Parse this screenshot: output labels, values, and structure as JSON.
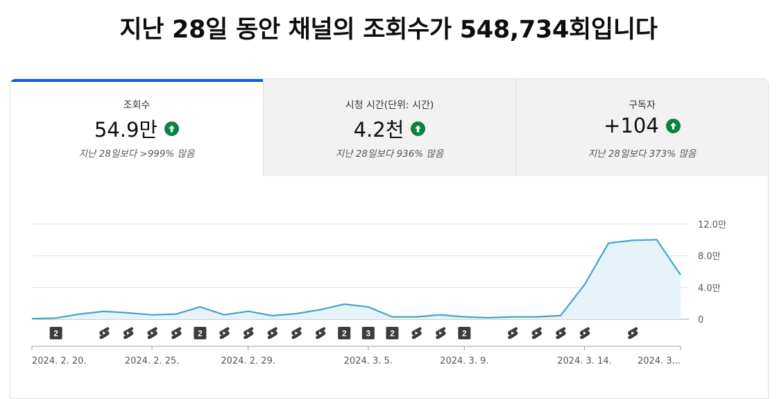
{
  "headline": "지난 28일 동안 채널의 조회수가 548,734회입니다",
  "tabs": [
    {
      "label": "조회수",
      "value": "54.9만",
      "note": "지난 28일보다 >999% 많음",
      "active": true,
      "trend_icon": "arrow-up-icon"
    },
    {
      "label": "시청 시간(단위: 시간)",
      "value": "4.2천",
      "note": "지난 28일보다 936% 많음",
      "active": false,
      "trend_icon": "arrow-up-icon"
    },
    {
      "label": "구독자",
      "value": "+104",
      "note": "지난 28일보다 373% 많음",
      "active": false,
      "trend_icon": "arrow-up-icon"
    }
  ],
  "colors": {
    "accent": "#065fd4",
    "line": "#3ea6cc",
    "area": "#e6f3fa",
    "trend_up": "#0b8043",
    "badge": "#3c3c3c"
  },
  "chart_data": {
    "type": "area",
    "y_tick_labels": [
      "12.0만",
      "8.0만",
      "4.0만",
      "0"
    ],
    "y_ticks": [
      120000,
      80000,
      40000,
      0
    ],
    "ylim": [
      0,
      120000
    ],
    "grid": true,
    "x_tick_labels": [
      "2024. 2. 20.",
      "2024. 2. 25.",
      "2024. 2. 29.",
      "2024. 3. 5.",
      "2024. 3. 9.",
      "2024. 3. 14.",
      "2024. 3..."
    ],
    "x_tick_index": [
      0,
      5,
      9,
      14,
      18,
      23,
      27
    ],
    "x": [
      "2024-02-20",
      "2024-02-21",
      "2024-02-22",
      "2024-02-23",
      "2024-02-24",
      "2024-02-25",
      "2024-02-26",
      "2024-02-27",
      "2024-02-28",
      "2024-02-29",
      "2024-03-01",
      "2024-03-02",
      "2024-03-03",
      "2024-03-04",
      "2024-03-05",
      "2024-03-06",
      "2024-03-07",
      "2024-03-08",
      "2024-03-09",
      "2024-03-10",
      "2024-03-11",
      "2024-03-12",
      "2024-03-13",
      "2024-03-14",
      "2024-03-15",
      "2024-03-16",
      "2024-03-17",
      "2024-03-18"
    ],
    "values": [
      500,
      1500,
      6500,
      10000,
      8000,
      5500,
      6500,
      15500,
      5500,
      10000,
      4500,
      7000,
      12000,
      19000,
      15500,
      3000,
      3000,
      5500,
      3000,
      1800,
      3000,
      3000,
      4500,
      43500,
      96000,
      99500,
      100500,
      56000
    ],
    "markers": [
      {
        "index": 1,
        "kind": "count",
        "label": "2"
      },
      {
        "index": 3,
        "kind": "shorts"
      },
      {
        "index": 4,
        "kind": "shorts"
      },
      {
        "index": 5,
        "kind": "shorts"
      },
      {
        "index": 6,
        "kind": "shorts"
      },
      {
        "index": 7,
        "kind": "count",
        "label": "2"
      },
      {
        "index": 8,
        "kind": "shorts"
      },
      {
        "index": 9,
        "kind": "shorts"
      },
      {
        "index": 10,
        "kind": "shorts"
      },
      {
        "index": 11,
        "kind": "shorts"
      },
      {
        "index": 12,
        "kind": "shorts"
      },
      {
        "index": 13,
        "kind": "count",
        "label": "2"
      },
      {
        "index": 14,
        "kind": "count",
        "label": "3"
      },
      {
        "index": 15,
        "kind": "count",
        "label": "2"
      },
      {
        "index": 16,
        "kind": "shorts"
      },
      {
        "index": 17,
        "kind": "shorts"
      },
      {
        "index": 18,
        "kind": "count",
        "label": "2"
      },
      {
        "index": 20,
        "kind": "shorts"
      },
      {
        "index": 21,
        "kind": "shorts"
      },
      {
        "index": 22,
        "kind": "shorts"
      },
      {
        "index": 23,
        "kind": "shorts"
      },
      {
        "index": 25,
        "kind": "shorts"
      }
    ]
  }
}
